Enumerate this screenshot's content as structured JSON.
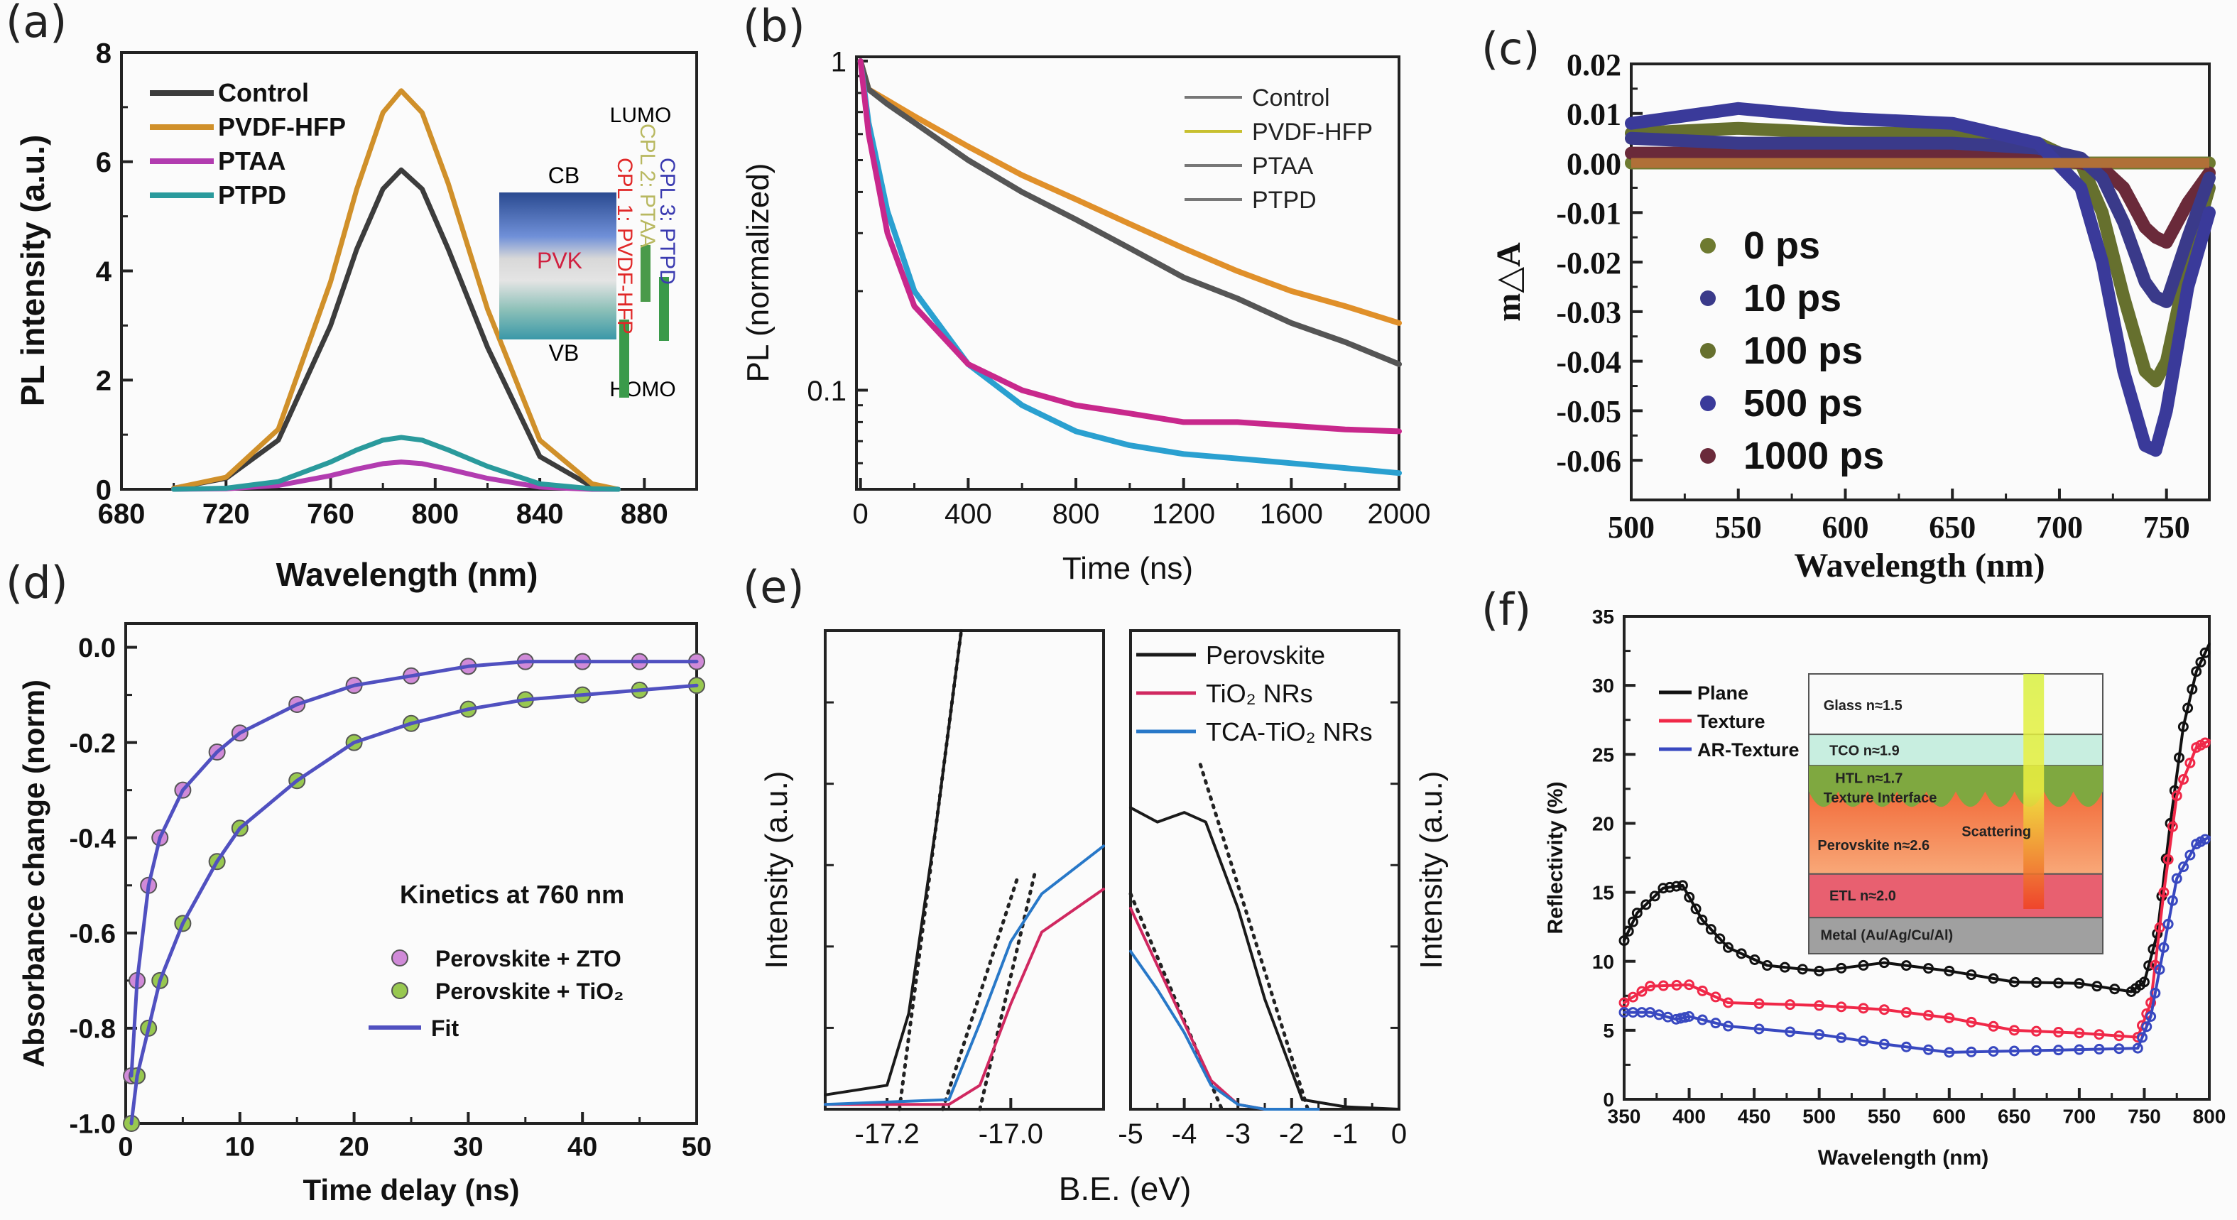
{
  "chart_data": [
    {
      "panel_label": "(a)",
      "type": "line",
      "xlabel": "Wavelength (nm)",
      "ylabel": "PL intensity (a.u.)",
      "xlim": [
        680,
        900
      ],
      "ylim": [
        0,
        8
      ],
      "xticks": [
        "680",
        "720",
        "760",
        "800",
        "840",
        "880"
      ],
      "yticks": [
        "0",
        "2",
        "4",
        "6",
        "8"
      ],
      "legend_position": "top-left",
      "series": [
        {
          "name": "Control",
          "color": "#3c3c3c",
          "x": [
            700,
            720,
            740,
            760,
            770,
            780,
            787,
            795,
            805,
            820,
            840,
            860,
            870
          ],
          "y": [
            0.02,
            0.2,
            0.9,
            3.0,
            4.4,
            5.5,
            5.85,
            5.5,
            4.4,
            2.6,
            0.6,
            0.05,
            0
          ]
        },
        {
          "name": "PVDF-HFP",
          "color": "#d0902a",
          "x": [
            700,
            720,
            740,
            760,
            770,
            780,
            787,
            795,
            805,
            820,
            840,
            860,
            870
          ],
          "y": [
            0.02,
            0.22,
            1.1,
            3.8,
            5.5,
            6.9,
            7.3,
            6.9,
            5.6,
            3.3,
            0.9,
            0.1,
            0
          ]
        },
        {
          "name": "PTAA",
          "color": "#b23cb0",
          "x": [
            700,
            720,
            740,
            760,
            770,
            780,
            787,
            795,
            805,
            820,
            840,
            860,
            870
          ],
          "y": [
            0,
            0.01,
            0.07,
            0.25,
            0.37,
            0.47,
            0.5,
            0.47,
            0.37,
            0.2,
            0.04,
            0,
            0
          ]
        },
        {
          "name": "PTPD",
          "color": "#2a9a9c",
          "x": [
            700,
            720,
            740,
            760,
            770,
            780,
            787,
            795,
            805,
            820,
            840,
            860,
            870
          ],
          "y": [
            0,
            0.02,
            0.14,
            0.5,
            0.72,
            0.9,
            0.95,
            0.9,
            0.72,
            0.42,
            0.1,
            0.01,
            0
          ]
        }
      ],
      "inset": {
        "cb": "CB",
        "vb": "VB",
        "pvk": "PVK",
        "lumo": "LUMO",
        "homo": "HOMO",
        "cpl": [
          {
            "text": "CPL 1: PVDF-HFP",
            "color": "#e02828"
          },
          {
            "text": "CPL 2: PTAA",
            "color": "#b8b860"
          },
          {
            "text": "CPL 3: PTPD",
            "color": "#3a3ab0"
          }
        ]
      }
    },
    {
      "panel_label": "(b)",
      "type": "line",
      "xlabel": "Time (ns)",
      "ylabel": "PL (normalized)",
      "xlim": [
        -15,
        2000
      ],
      "ylim": [
        0.05,
        1.03
      ],
      "yscale": "log",
      "xticks": [
        "0",
        "400",
        "800",
        "1200",
        "1600",
        "2000"
      ],
      "yticks": [
        "0.1",
        "1"
      ],
      "legend_position": "top-right",
      "series": [
        {
          "name": "Control",
          "color": "#555555",
          "legend_color": "#777777",
          "x": [
            0,
            30,
            100,
            200,
            400,
            600,
            800,
            1000,
            1200,
            1400,
            1600,
            1800,
            2000
          ],
          "y": [
            1,
            0.82,
            0.74,
            0.65,
            0.5,
            0.4,
            0.33,
            0.27,
            0.22,
            0.19,
            0.16,
            0.14,
            0.12
          ]
        },
        {
          "name": "PVDF-HFP",
          "color": "#e0902a",
          "legend_color": "#c8c030",
          "x": [
            0,
            30,
            100,
            200,
            400,
            600,
            800,
            1000,
            1200,
            1400,
            1600,
            1800,
            2000
          ],
          "y": [
            1,
            0.82,
            0.76,
            0.68,
            0.55,
            0.45,
            0.38,
            0.32,
            0.27,
            0.23,
            0.2,
            0.18,
            0.16
          ]
        },
        {
          "name": "PTAA",
          "color": "#c8288c",
          "legend_color": "#777777",
          "x": [
            0,
            30,
            100,
            200,
            400,
            600,
            800,
            1000,
            1200,
            1400,
            1600,
            1800,
            2000
          ],
          "y": [
            1,
            0.6,
            0.3,
            0.18,
            0.12,
            0.1,
            0.09,
            0.085,
            0.08,
            0.08,
            0.078,
            0.076,
            0.075
          ]
        },
        {
          "name": "PTPD",
          "color": "#2aa0d0",
          "legend_color": "#777777",
          "x": [
            0,
            30,
            100,
            200,
            400,
            600,
            800,
            1000,
            1200,
            1400,
            1600,
            1800,
            2000
          ],
          "y": [
            1,
            0.65,
            0.35,
            0.2,
            0.12,
            0.09,
            0.075,
            0.068,
            0.064,
            0.062,
            0.06,
            0.058,
            0.056
          ]
        }
      ]
    },
    {
      "panel_label": "(c)",
      "type": "scatter",
      "xlabel": "Wavelength (nm)",
      "ylabel": "m△A",
      "xlim": [
        500,
        770
      ],
      "ylim": [
        -0.068,
        0.02
      ],
      "xticks": [
        "500",
        "550",
        "600",
        "650",
        "700",
        "750"
      ],
      "yticks": [
        "0.02",
        "0.01",
        "0.00",
        "-0.01",
        "-0.02",
        "-0.03",
        "-0.04",
        "-0.05",
        "-0.06"
      ],
      "legend_position": "bottom-left",
      "series": [
        {
          "name": "0 ps",
          "color": "#6e7a30",
          "x": [
            500,
            550,
            600,
            650,
            690,
            710,
            720,
            730,
            740,
            745,
            750,
            760,
            770
          ],
          "y": [
            0,
            0,
            0,
            0,
            0,
            0,
            0,
            0,
            0,
            0,
            0,
            0,
            0
          ]
        },
        {
          "name": "10 ps",
          "color": "#3a3a8a",
          "x": [
            500,
            550,
            600,
            650,
            690,
            710,
            720,
            730,
            740,
            745,
            750,
            760,
            770
          ],
          "y": [
            0.005,
            0.004,
            0.004,
            0.004,
            0.003,
            0.001,
            -0.003,
            -0.012,
            -0.024,
            -0.027,
            -0.028,
            -0.015,
            -0.003
          ]
        },
        {
          "name": "100 ps",
          "color": "#66702e",
          "x": [
            500,
            550,
            600,
            650,
            690,
            710,
            720,
            730,
            740,
            745,
            750,
            760,
            770
          ],
          "y": [
            0.006,
            0.007,
            0.006,
            0.006,
            0.004,
            0.0,
            -0.01,
            -0.027,
            -0.042,
            -0.044,
            -0.04,
            -0.02,
            -0.005
          ]
        },
        {
          "name": "500 ps",
          "color": "#3a3a9a",
          "x": [
            500,
            550,
            600,
            650,
            690,
            710,
            720,
            730,
            740,
            745,
            750,
            760,
            770
          ],
          "y": [
            0.008,
            0.011,
            0.009,
            0.008,
            0.004,
            -0.005,
            -0.02,
            -0.042,
            -0.057,
            -0.058,
            -0.05,
            -0.025,
            -0.01
          ]
        },
        {
          "name": "1000 ps",
          "color": "#6a2a3a",
          "x": [
            500,
            550,
            600,
            650,
            690,
            710,
            720,
            730,
            740,
            745,
            750,
            760,
            770
          ],
          "y": [
            0.002,
            0.002,
            0.002,
            0.002,
            0.001,
            0.0,
            -0.001,
            -0.005,
            -0.013,
            -0.015,
            -0.016,
            -0.008,
            -0.002
          ]
        }
      ]
    },
    {
      "panel_label": "(d)",
      "type": "scatter",
      "xlabel": "Time delay (ns)",
      "ylabel": "Absorbance change (norm)",
      "xlim": [
        0,
        50
      ],
      "ylim": [
        -1.0,
        0.05
      ],
      "xticks": [
        "0",
        "10",
        "20",
        "30",
        "40",
        "50"
      ],
      "yticks": [
        "0.0",
        "-0.2",
        "-0.4",
        "-0.6",
        "-0.8",
        "-1.0"
      ],
      "annotation": "Kinetics at 760 nm",
      "legend_position": "bottom-center",
      "series": [
        {
          "name": "Perovskite + ZTO",
          "color": "#d08ad8",
          "x": [
            0.5,
            1,
            2,
            3,
            5,
            8,
            10,
            15,
            20,
            25,
            30,
            35,
            40,
            45,
            50
          ],
          "y": [
            -0.9,
            -0.7,
            -0.5,
            -0.4,
            -0.3,
            -0.22,
            -0.18,
            -0.12,
            -0.08,
            -0.06,
            -0.04,
            -0.03,
            -0.03,
            -0.03,
            -0.03
          ]
        },
        {
          "name": "Perovskite + TiO₂",
          "color": "#98c850",
          "x": [
            0.5,
            1,
            2,
            3,
            5,
            8,
            10,
            15,
            20,
            25,
            30,
            35,
            40,
            45,
            50
          ],
          "y": [
            -1.0,
            -0.9,
            -0.8,
            -0.7,
            -0.58,
            -0.45,
            -0.38,
            -0.28,
            -0.2,
            -0.16,
            -0.13,
            -0.11,
            -0.1,
            -0.09,
            -0.08
          ]
        },
        {
          "name": "Fit",
          "color": "#5050c0"
        }
      ]
    },
    {
      "panel_label": "(e)",
      "type": "line",
      "xlabel": "B.E. (eV)",
      "ylabel": "Intensity (a.u.)",
      "legend_position": "top-right",
      "legend": [
        {
          "name": "Perovskite",
          "color": "#1a1a1a"
        },
        {
          "name": "TiO₂ NRs",
          "color": "#d02860"
        },
        {
          "name": "TCA-TiO₂ NRs",
          "color": "#2878c8"
        }
      ],
      "subplots": [
        {
          "xlim": [
            -17.3,
            -16.85
          ],
          "ylim": [
            0,
            1
          ],
          "xticks": [
            "-17.2",
            "-17.0"
          ],
          "series": [
            {
              "name": "Perovskite",
              "color": "#1a1a1a",
              "x": [
                -17.3,
                -17.2,
                -17.165,
                -17.12,
                -17.08
              ],
              "y": [
                0.03,
                0.05,
                0.2,
                0.6,
                1.0
              ]
            },
            {
              "name": "TiO₂ NRs",
              "color": "#d02860",
              "x": [
                -17.3,
                -17.1,
                -17.05,
                -17.0,
                -16.95,
                -16.85
              ],
              "y": [
                0.01,
                0.01,
                0.05,
                0.22,
                0.37,
                0.46
              ]
            },
            {
              "name": "TCA-TiO₂ NRs",
              "color": "#2878c8",
              "x": [
                -17.3,
                -17.1,
                -17.05,
                -17.0,
                -16.95,
                -16.85
              ],
              "y": [
                0.01,
                0.02,
                0.18,
                0.35,
                0.45,
                0.55
              ]
            }
          ],
          "guide_lines": [
            {
              "x": [
                -17.18,
                -17.08
              ],
              "y": [
                0.0,
                1.0
              ]
            },
            {
              "x": [
                -17.05,
                -16.96
              ],
              "y": [
                0.0,
                0.5
              ]
            },
            {
              "x": [
                -17.11,
                -16.99
              ],
              "y": [
                0.0,
                0.48
              ]
            }
          ]
        },
        {
          "xlim": [
            -5,
            0
          ],
          "ylim": [
            0,
            1
          ],
          "xticks": [
            "-5",
            "-4",
            "-3",
            "-2",
            "-1",
            "0"
          ],
          "series": [
            {
              "name": "Perovskite",
              "color": "#1a1a1a",
              "x": [
                -5,
                -4.5,
                -4,
                -3.6,
                -3,
                -2.5,
                -2,
                -1.8,
                -1,
                0
              ],
              "y": [
                0.63,
                0.6,
                0.62,
                0.6,
                0.42,
                0.23,
                0.08,
                0.02,
                0.005,
                0
              ]
            },
            {
              "name": "TiO₂ NRs",
              "color": "#d02860",
              "x": [
                -5,
                -4.5,
                -4,
                -3.5,
                -3,
                -2.5,
                -1.5
              ],
              "y": [
                0.42,
                0.3,
                0.18,
                0.06,
                0.01,
                0,
                0
              ]
            },
            {
              "name": "TCA-TiO₂ NRs",
              "color": "#2878c8",
              "x": [
                -5,
                -4.5,
                -4,
                -3.5,
                -3,
                -2.5,
                -1.5
              ],
              "y": [
                0.33,
                0.25,
                0.16,
                0.05,
                0.01,
                0,
                0
              ]
            }
          ],
          "guide_lines": [
            {
              "x": [
                -3.7,
                -1.7
              ],
              "y": [
                0.72,
                0.0
              ]
            },
            {
              "x": [
                -5,
                -3.3
              ],
              "y": [
                0.45,
                0.0
              ]
            }
          ]
        }
      ]
    },
    {
      "panel_label": "(f)",
      "type": "scatter",
      "xlabel": "Wavelength (nm)",
      "ylabel": "Reflectivity (%)",
      "xlim": [
        350,
        800
      ],
      "ylim": [
        0,
        35
      ],
      "xticks": [
        "350",
        "400",
        "450",
        "500",
        "550",
        "600",
        "650",
        "700",
        "750",
        "800"
      ],
      "yticks": [
        "0",
        "5",
        "10",
        "15",
        "20",
        "25",
        "30",
        "35"
      ],
      "legend_position": "top-left",
      "series": [
        {
          "name": "Plane",
          "color": "#111111",
          "x": [
            350,
            360,
            380,
            395,
            410,
            430,
            460,
            500,
            550,
            600,
            650,
            700,
            740,
            750,
            760,
            770,
            780,
            790,
            800
          ],
          "y": [
            11.5,
            13.5,
            15.3,
            15.5,
            13,
            11,
            9.7,
            9.3,
            9.9,
            9.3,
            8.5,
            8.4,
            7.8,
            8.5,
            12,
            20,
            27,
            31,
            33
          ]
        },
        {
          "name": "Texture",
          "color": "#f02848",
          "x": [
            350,
            370,
            400,
            430,
            500,
            550,
            600,
            650,
            700,
            745,
            755,
            765,
            775,
            790,
            800
          ],
          "y": [
            7,
            8.2,
            8.3,
            7,
            6.8,
            6.5,
            5.9,
            5,
            4.8,
            4.5,
            7,
            15,
            22,
            25.5,
            26
          ]
        },
        {
          "name": "AR-Texture",
          "color": "#3848c0",
          "x": [
            350,
            370,
            390,
            400,
            430,
            500,
            550,
            600,
            650,
            700,
            745,
            755,
            765,
            775,
            790,
            800
          ],
          "y": [
            6.3,
            6.3,
            5.8,
            6,
            5.3,
            4.7,
            4,
            3.4,
            3.5,
            3.6,
            3.7,
            6,
            11,
            16,
            18.5,
            19
          ]
        }
      ],
      "inset": {
        "layers": [
          "Glass n≈1.5",
          "TCO   n≈1.9",
          "HTL   n≈1.7",
          "Texture Interface",
          "Perovskite n≈2.6",
          "Scattering",
          "ETL     n≈2.0",
          "Metal (Au/Ag/Cu/Al)"
        ]
      }
    }
  ]
}
